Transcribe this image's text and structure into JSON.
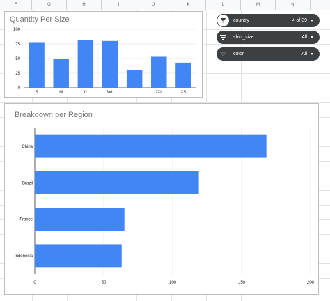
{
  "spreadsheet": {
    "columns": [
      "F",
      "G",
      "H",
      "I",
      "J",
      "K",
      "L",
      "M",
      "N"
    ]
  },
  "filters": [
    {
      "field": "country",
      "value": "4 of 39",
      "icon": "funnel-filled-icon",
      "active": true
    },
    {
      "field": "shirt_size",
      "value": "All",
      "icon": "filter-lines-icon",
      "active": false
    },
    {
      "field": "color",
      "value": "All",
      "icon": "filter-lines-icon",
      "active": false
    }
  ],
  "colors": {
    "bar": "#4285f4",
    "slicer_bg": "#3c4043"
  },
  "chart_data": [
    {
      "type": "bar",
      "title": "Quantity Per Size",
      "categories": [
        "S",
        "M",
        "XL",
        "3XL",
        "L",
        "2XL",
        "XS"
      ],
      "values": [
        78,
        50,
        82,
        80,
        30,
        53,
        43
      ],
      "ylim": [
        0,
        100
      ],
      "yticks": [
        "0",
        "25",
        "50",
        "75",
        "100"
      ],
      "grid": true
    },
    {
      "type": "bar",
      "orientation": "horizontal",
      "title": "Breakdown per Region",
      "categories": [
        "China",
        "Brazil",
        "France",
        "Indonesia"
      ],
      "values": [
        168,
        119,
        65,
        63
      ],
      "xlim": [
        0,
        200
      ],
      "xticks": [
        "0",
        "50",
        "100",
        "150",
        "200"
      ],
      "grid": true
    }
  ]
}
